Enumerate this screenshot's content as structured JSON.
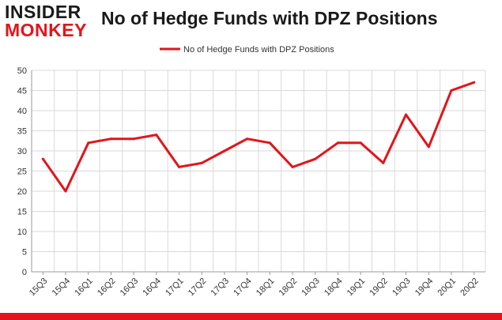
{
  "brand": {
    "line1": "INSIDER",
    "line2": "MONKEY",
    "accent_color": "#e3141b"
  },
  "chart_data": {
    "type": "line",
    "title": "No of Hedge Funds with DPZ Positions",
    "xlabel": "",
    "ylabel": "",
    "categories": [
      "15Q3",
      "15Q4",
      "16Q1",
      "16Q2",
      "16Q3",
      "16Q4",
      "17Q1",
      "17Q2",
      "17Q3",
      "17Q4",
      "18Q1",
      "18Q2",
      "18Q3",
      "18Q4",
      "19Q1",
      "19Q2",
      "19Q3",
      "19Q4",
      "20Q1",
      "20Q2"
    ],
    "series": [
      {
        "name": "No of Hedge Funds with DPZ Positions",
        "color": "#e3141b",
        "values": [
          28,
          20,
          32,
          33,
          33,
          34,
          26,
          27,
          30,
          33,
          32,
          26,
          28,
          32,
          32,
          27,
          39,
          31,
          45,
          47
        ]
      }
    ],
    "ylim": [
      0,
      50
    ],
    "yticks": [
      0,
      5,
      10,
      15,
      20,
      25,
      30,
      35,
      40,
      45,
      50
    ],
    "grid": true,
    "legend_position": "top-center"
  }
}
